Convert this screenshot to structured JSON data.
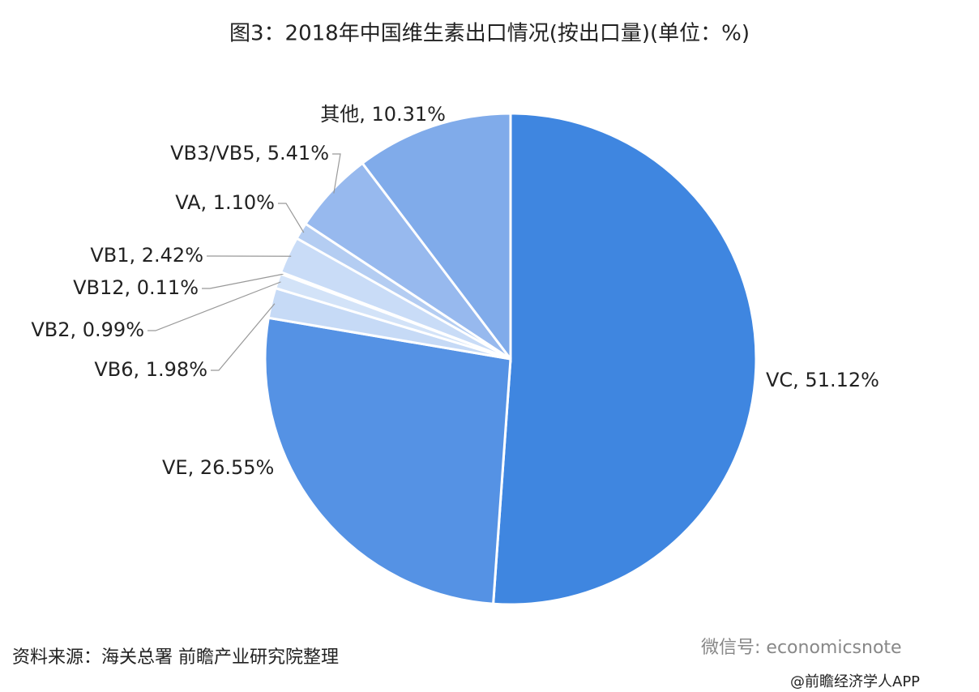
{
  "chart_data": {
    "type": "pie",
    "title": "图3：2018年中国维生素出口情况(按出口量)(单位：%)",
    "values": [
      51.12,
      26.55,
      1.98,
      0.99,
      0.11,
      2.42,
      1.1,
      5.41,
      10.31
    ],
    "value_labels": [
      "VC, 51.12%",
      "VE, 26.55%",
      "VB6, 1.98%",
      "VB2, 0.99%",
      "VB12, 0.11%",
      "VB1, 2.42%",
      "VA, 1.10%",
      "VB3/VB5, 5.41%",
      "其他, 10.31%"
    ],
    "colors": [
      "#3f86e0",
      "#5592e4",
      "#c6daf6",
      "#d3e3f8",
      "#b9d1f3",
      "#c9dcf7",
      "#b4cdf2",
      "#97b9ee",
      "#80abea"
    ],
    "source": "资料来源：海关总署 前瞻产业研究院整理",
    "watermark": "微信号: economicsnote",
    "credit": "@前瞻经济学人APP"
  }
}
